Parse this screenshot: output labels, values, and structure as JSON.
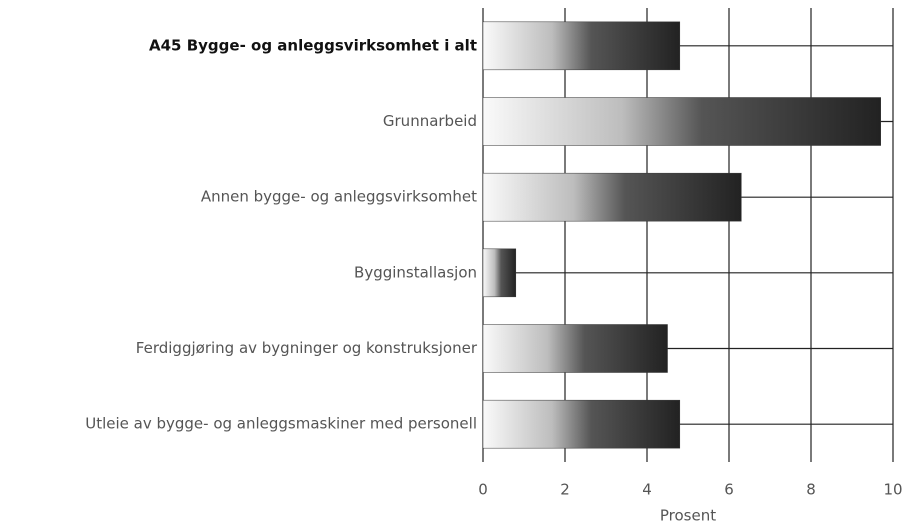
{
  "chart_data": {
    "type": "barh",
    "categories": [
      "A45 Bygge- og anleggsvirksomhet i alt",
      "Grunnarbeid",
      "Annen bygge- og anleggsvirksomhet",
      "Bygginstallasjon",
      "Ferdiggjøring av bygninger og konstruksjoner",
      "Utleie av bygge- og anleggsmaskiner med personell"
    ],
    "values": [
      4.8,
      9.7,
      6.3,
      0.8,
      4.5,
      4.8
    ],
    "color": "#222222",
    "xlim": [
      0,
      10
    ],
    "xticks": [
      0,
      2,
      4,
      6,
      8,
      10
    ],
    "xlabel": "Prosent",
    "grid": true
  }
}
